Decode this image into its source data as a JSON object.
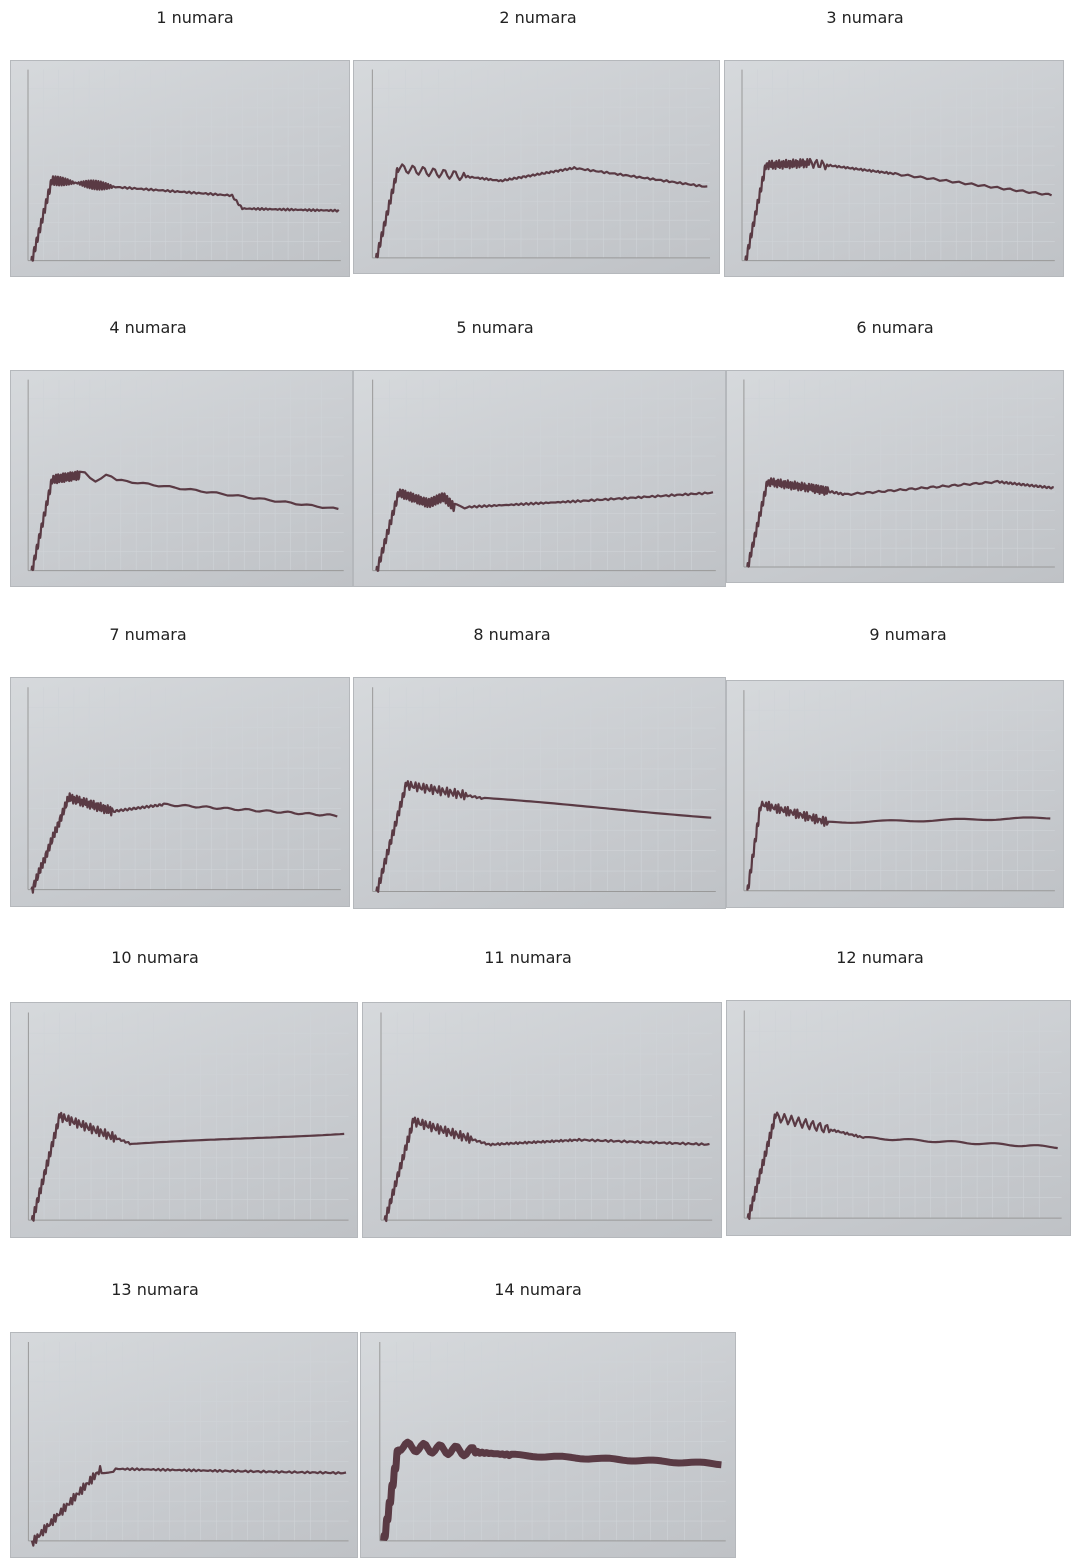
{
  "panels": [
    {
      "label": "1 numara"
    },
    {
      "label": "2 numara"
    },
    {
      "label": "3 numara"
    },
    {
      "label": "4 numara"
    },
    {
      "label": "5 numara"
    },
    {
      "label": "6 numara"
    },
    {
      "label": "7 numara"
    },
    {
      "label": "8 numara"
    },
    {
      "label": "9 numara"
    },
    {
      "label": "10 numara"
    },
    {
      "label": "11 numara"
    },
    {
      "label": "12 numara"
    },
    {
      "label": "13 numara"
    },
    {
      "label": "14 numara"
    }
  ]
}
